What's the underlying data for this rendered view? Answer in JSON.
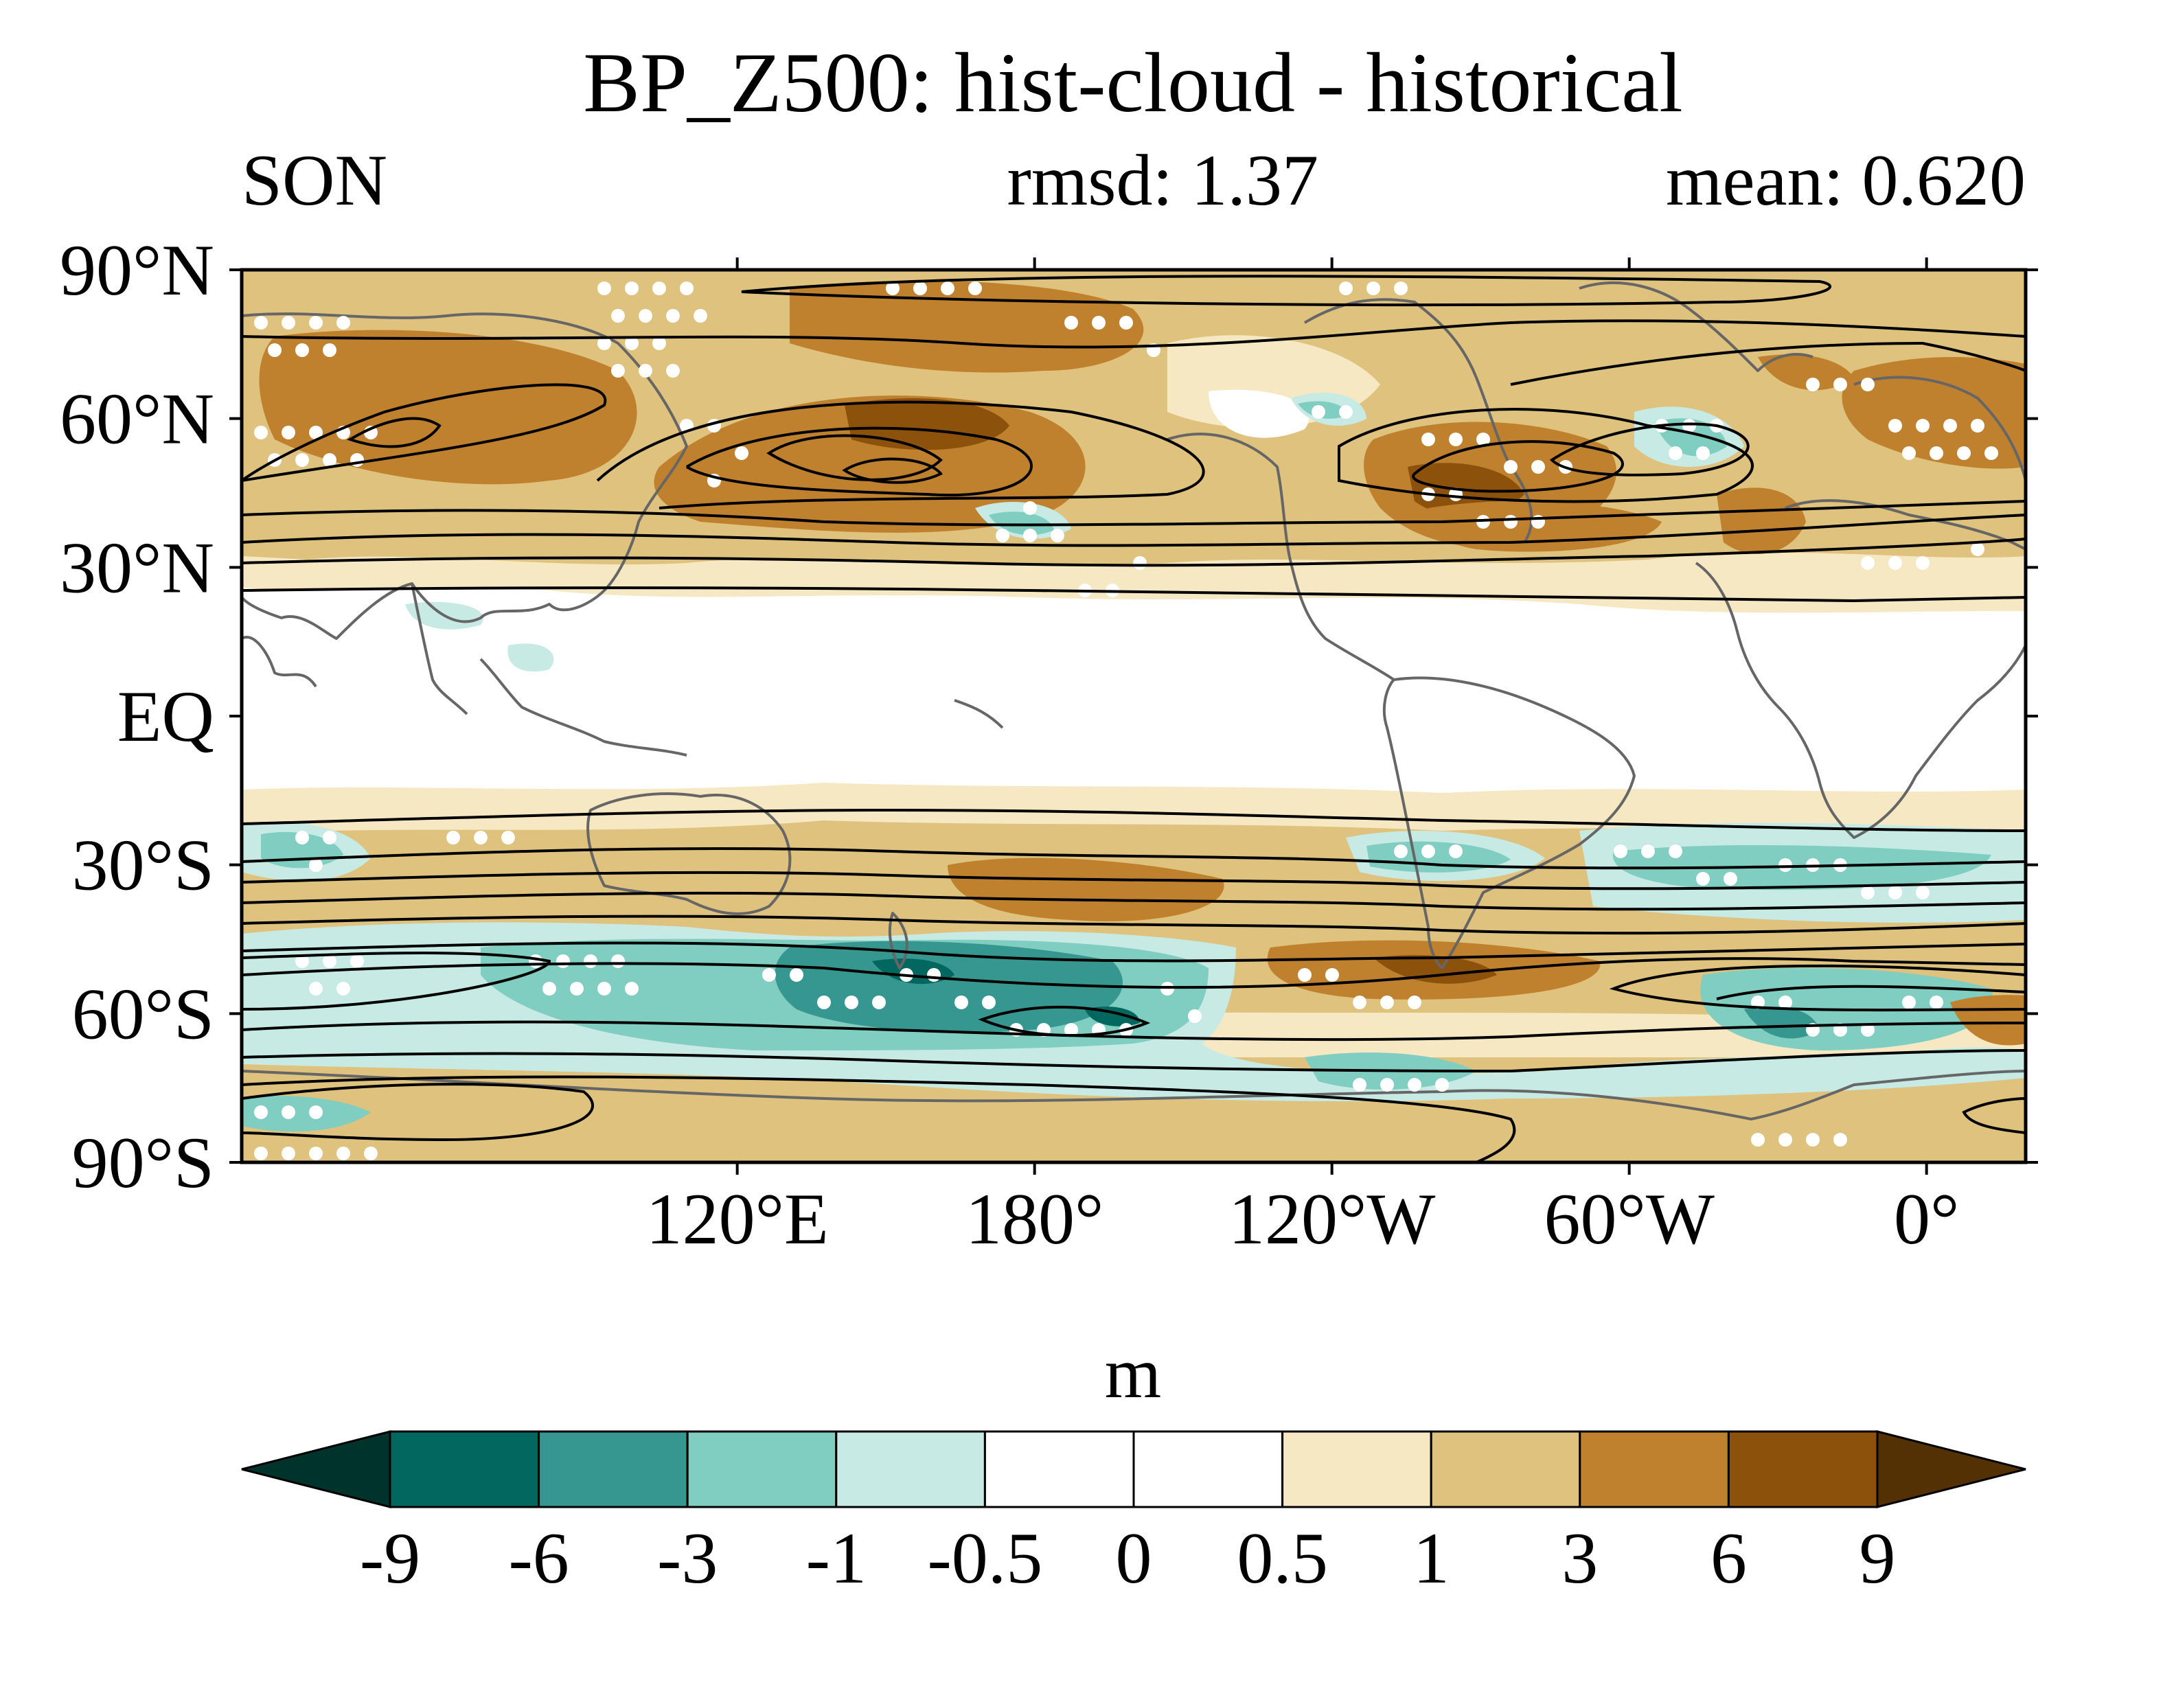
{
  "title": "BP_Z500: hist-cloud - historical",
  "subtitle": {
    "left": "SON",
    "center": "rmsd: 1.37",
    "right": "mean: 0.620"
  },
  "map": {
    "projection": "equirectangular",
    "lon_range": [
      20,
      380
    ],
    "lat_range": [
      -90,
      90
    ],
    "y_ticks": [
      {
        "lat": 90,
        "label": "90°N"
      },
      {
        "lat": 60,
        "label": "60°N"
      },
      {
        "lat": 30,
        "label": "30°N"
      },
      {
        "lat": 0,
        "label": "EQ"
      },
      {
        "lat": -30,
        "label": "30°S"
      },
      {
        "lat": -60,
        "label": "60°S"
      },
      {
        "lat": -90,
        "label": "90°S"
      }
    ],
    "x_ticks": [
      {
        "lon": 120,
        "label": "120°E"
      },
      {
        "lon": 180,
        "label": "180°"
      },
      {
        "lon": 240,
        "label": "120°W"
      },
      {
        "lon": 300,
        "label": "60°W"
      },
      {
        "lon": 360,
        "label": "0°"
      }
    ]
  },
  "colorbar": {
    "unit": "m",
    "levels": [
      "-9",
      "-6",
      "-3",
      "-1",
      "-0.5",
      "0",
      "0.5",
      "1",
      "3",
      "6",
      "9"
    ],
    "colors": [
      "#01332d",
      "#02675f",
      "#35978f",
      "#80cdc1",
      "#c7eae5",
      "#ffffff",
      "#ffffff",
      "#f6e8c3",
      "#dfc27d",
      "#bf812d",
      "#8c510a",
      "#543005"
    ]
  }
}
